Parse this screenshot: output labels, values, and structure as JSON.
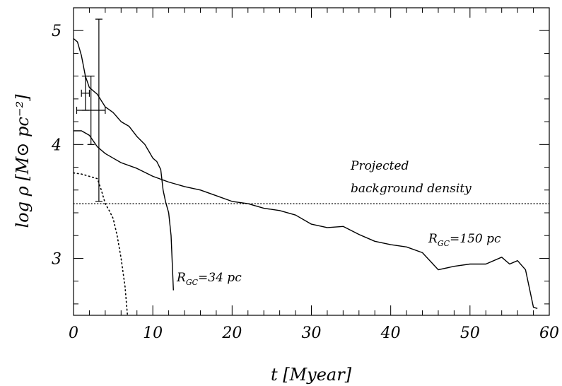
{
  "chart_data": {
    "type": "line",
    "xlabel": "t [Myear]",
    "ylabel": "log ρ [M⊙ pc⁻²]",
    "xlim": [
      0,
      60
    ],
    "ylim": [
      2.5,
      5.2
    ],
    "xticks": [
      "0",
      "10",
      "20",
      "30",
      "40",
      "50",
      "60"
    ],
    "yticks": [
      "3",
      "4",
      "5"
    ],
    "grid": false,
    "series": [
      {
        "name": "R_GC=34 pc",
        "style": "solid",
        "x": [
          0,
          0.5,
          1,
          1.5,
          2,
          3,
          4,
          5,
          6,
          7,
          8,
          9,
          9.5,
          10,
          10.5,
          11,
          11.3,
          11.6,
          12,
          12.3,
          12.6
        ],
        "y": [
          4.93,
          4.9,
          4.78,
          4.6,
          4.5,
          4.44,
          4.33,
          4.28,
          4.2,
          4.16,
          4.07,
          4.0,
          3.94,
          3.88,
          3.85,
          3.78,
          3.6,
          3.5,
          3.4,
          3.2,
          2.72
        ]
      },
      {
        "name": "R_GC=150 pc",
        "style": "solid",
        "x": [
          0,
          1,
          2,
          3,
          4,
          5,
          6,
          8,
          10,
          12,
          14,
          16,
          18,
          20,
          22,
          24,
          26,
          28,
          30,
          32,
          34,
          36,
          38,
          40,
          42,
          44,
          46,
          48,
          50,
          52,
          54,
          55,
          56,
          57,
          58,
          58.5
        ],
        "y": [
          4.12,
          4.12,
          4.08,
          3.98,
          3.92,
          3.88,
          3.84,
          3.79,
          3.72,
          3.67,
          3.63,
          3.6,
          3.55,
          3.5,
          3.48,
          3.44,
          3.42,
          3.38,
          3.3,
          3.27,
          3.28,
          3.21,
          3.15,
          3.12,
          3.1,
          3.05,
          2.9,
          2.93,
          2.95,
          2.95,
          3.01,
          2.95,
          2.98,
          2.9,
          2.57,
          2.56
        ]
      },
      {
        "name": "",
        "style": "dotted",
        "x": [
          0,
          1,
          2,
          3,
          3.5,
          4,
          4.5,
          5,
          5.5,
          6,
          6.5,
          6.8
        ],
        "y": [
          3.75,
          3.74,
          3.72,
          3.7,
          3.6,
          3.48,
          3.42,
          3.35,
          3.2,
          3.0,
          2.75,
          2.5
        ]
      }
    ],
    "reference_line": {
      "y": 3.48,
      "style": "dotted"
    },
    "error_bars": [
      {
        "x": 1.5,
        "y": 4.45,
        "xerr": 0.5,
        "yerr": 0.15
      },
      {
        "x": 2.2,
        "y": 4.3,
        "xerr": 1.8,
        "yerr": 0.3
      },
      {
        "x": 3.2,
        "y": 4.3,
        "xerr": 0,
        "yerr": 0.8
      }
    ],
    "annotations": {
      "background_line1": "Projected",
      "background_line2": "background density",
      "label_150_main": "R",
      "label_150_sub": "GC",
      "label_150_rest": "=150 pc",
      "label_34_main": "R",
      "label_34_sub": "GC",
      "label_34_rest": "=34 pc"
    }
  }
}
